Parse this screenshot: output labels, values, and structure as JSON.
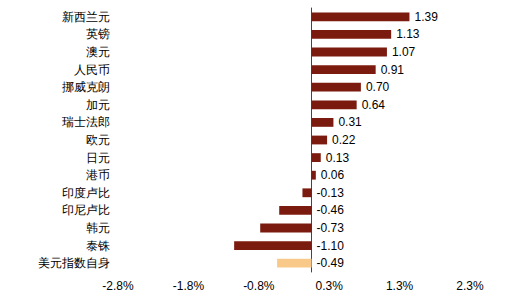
{
  "chart_data": {
    "type": "bar",
    "orientation": "horizontal",
    "categories": [
      "新西兰元",
      "英镑",
      "澳元",
      "人民币",
      "挪威克朗",
      "加元",
      "瑞士法郎",
      "欧元",
      "日元",
      "港币",
      "印度卢比",
      "印尼卢比",
      "韩元",
      "泰铢",
      "美元指数自身"
    ],
    "values": [
      1.39,
      1.13,
      1.07,
      0.91,
      0.7,
      0.64,
      0.31,
      0.22,
      0.13,
      0.06,
      -0.13,
      -0.46,
      -0.73,
      -1.1,
      -0.49
    ],
    "value_labels": [
      "1.39",
      "1.13",
      "1.07",
      "0.91",
      "0.70",
      "0.64",
      "0.31",
      "0.22",
      "0.13",
      "0.06",
      "-0.13",
      "-0.46",
      "-0.73",
      "-1.10",
      "-0.49"
    ],
    "colors": [
      "#7b1a0e",
      "#7b1a0e",
      "#7b1a0e",
      "#7b1a0e",
      "#7b1a0e",
      "#7b1a0e",
      "#7b1a0e",
      "#7b1a0e",
      "#7b1a0e",
      "#7b1a0e",
      "#7b1a0e",
      "#7b1a0e",
      "#7b1a0e",
      "#7b1a0e",
      "#f9c98a"
    ],
    "data_labels": true,
    "xlim": [
      -2.75,
      2.25
    ],
    "xticks": [
      {
        "value": -2.75,
        "label": "-2.8%"
      },
      {
        "value": -1.75,
        "label": "-1.8%"
      },
      {
        "value": -0.75,
        "label": "-0.8%"
      },
      {
        "value": 0.25,
        "label": "0.3%"
      },
      {
        "value": 1.25,
        "label": "1.3%"
      },
      {
        "value": 2.25,
        "label": "2.3%"
      }
    ],
    "grid": false
  }
}
